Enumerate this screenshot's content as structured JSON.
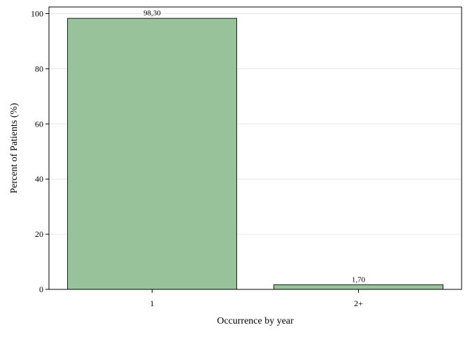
{
  "chart_data": {
    "type": "bar",
    "categories": [
      "1",
      "2+"
    ],
    "values": [
      98.3,
      1.7
    ],
    "value_labels": [
      "98,30",
      "1,70"
    ],
    "title": "",
    "xlabel": "Occurrence by year",
    "ylabel": "Percent of Patients (%)",
    "ylim": [
      0,
      100
    ],
    "yticks": [
      0,
      20,
      40,
      60,
      80,
      100
    ],
    "ytick_labels": [
      "0",
      "20",
      "40",
      "60",
      "80",
      "100"
    ],
    "grid": true,
    "legend": "none",
    "colors": {
      "bar_fill": "#98c299",
      "bar_stroke": "#1a1a1a",
      "grid": "#e6e6e6",
      "frame": "#000000"
    }
  }
}
